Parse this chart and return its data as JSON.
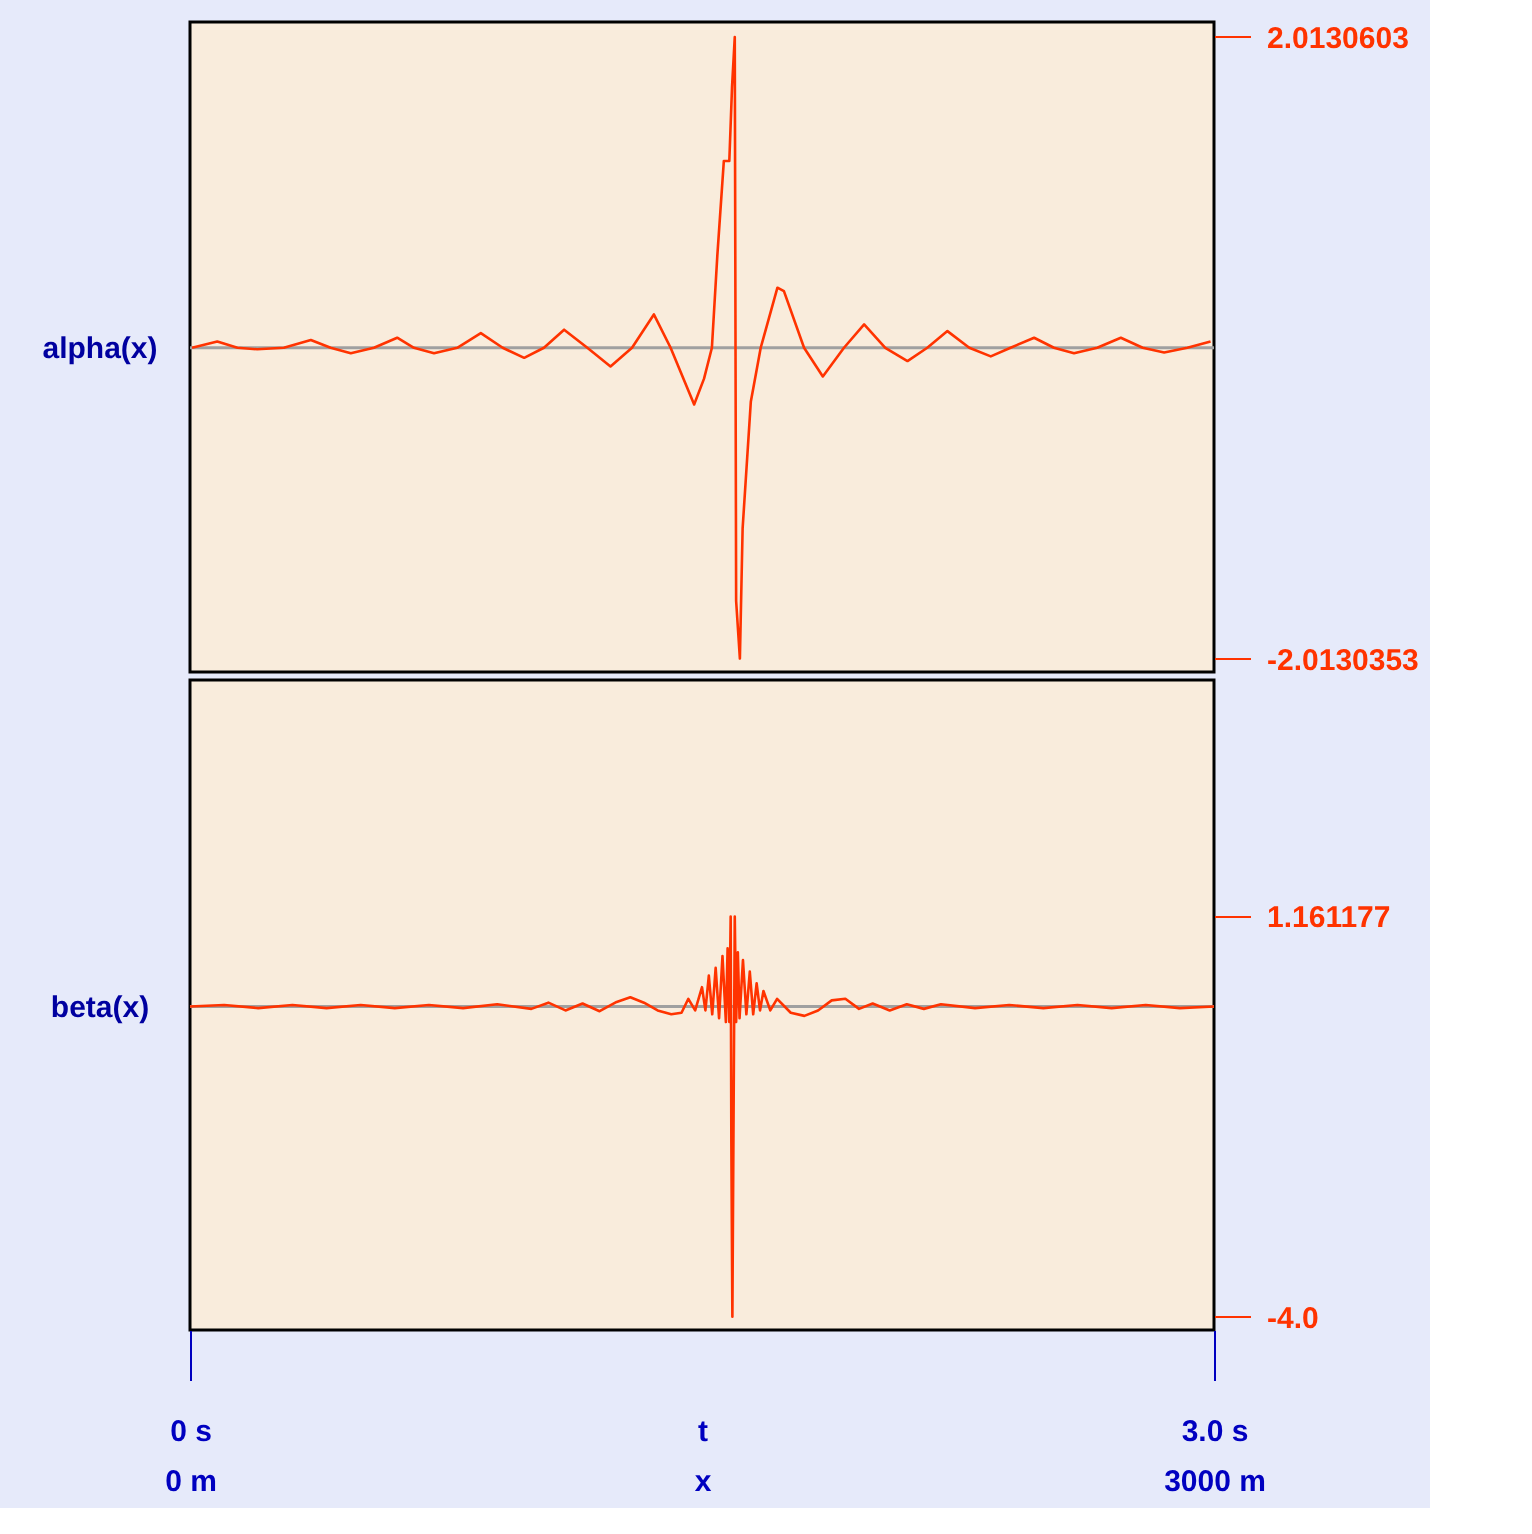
{
  "chart_data": [
    {
      "type": "line",
      "ylabel": "alpha(x)",
      "xlim": [
        0,
        3
      ],
      "ylim": [
        -2.1,
        2.11
      ],
      "yticks": [
        2.0130603,
        -2.0130353
      ],
      "tick_labels": "y",
      "grid": false,
      "ref_lines": [
        {
          "axis": "y",
          "value": 0,
          "color": "#a0a0a0"
        }
      ],
      "series": [
        {
          "color": "#ff3300",
          "x": [
            0.006,
            0.08,
            0.139,
            0.197,
            0.275,
            0.354,
            0.412,
            0.471,
            0.539,
            0.607,
            0.656,
            0.715,
            0.783,
            0.852,
            0.916,
            0.979,
            1.037,
            1.096,
            1.164,
            1.232,
            1.295,
            1.359,
            1.408,
            1.477,
            1.506,
            1.529,
            1.545,
            1.564,
            1.58,
            1.588,
            1.596,
            1.6,
            1.611,
            1.619,
            1.643,
            1.672,
            1.721,
            1.74,
            1.799,
            1.854,
            1.916,
            1.975,
            2.037,
            2.102,
            2.16,
            2.219,
            2.283,
            2.346,
            2.404,
            2.473,
            2.531,
            2.59,
            2.658,
            2.727,
            2.791,
            2.854,
            2.922,
            2.99
          ],
          "values": [
            0,
            0.04,
            0,
            -0.01,
            0,
            0.05,
            0,
            -0.035,
            0,
            0.065,
            0,
            -0.035,
            0,
            0.095,
            0,
            -0.065,
            0,
            0.117,
            0,
            -0.121,
            0,
            0.216,
            0,
            -0.367,
            -0.2,
            0,
            0.6,
            1.21,
            1.21,
            1.69,
            2.013,
            -1.64,
            -2.013,
            -1.17,
            -0.35,
            0,
            0.389,
            0.367,
            0,
            -0.186,
            0,
            0.151,
            0,
            -0.086,
            0,
            0.108,
            0,
            -0.056,
            0,
            0.065,
            0,
            -0.035,
            0,
            0.065,
            0,
            -0.03,
            0,
            0.04
          ]
        }
      ]
    },
    {
      "type": "line",
      "ylabel": "beta(x)",
      "xlabel": "t",
      "xlim": [
        0,
        3
      ],
      "xticks": [
        {
          "value": 0,
          "label": "0 s"
        },
        {
          "value": 3,
          "label": "3.0 s"
        }
      ],
      "x2label": "x",
      "x2lim": [
        0,
        3000
      ],
      "x2ticks": [
        {
          "value": 0,
          "label": "0 m"
        },
        {
          "value": 3000,
          "label": "3000 m"
        }
      ],
      "ylim": [
        -4.17,
        4.21
      ],
      "yticks": [
        1.161177,
        {
          "value": -4,
          "label": "-4.0"
        }
      ],
      "grid": false,
      "ref_lines": [
        {
          "axis": "y",
          "value": 0,
          "color": "#a0a0a0"
        }
      ],
      "series": [
        {
          "color": "#ff3300",
          "x": [
            0,
            0.1,
            0.2,
            0.3,
            0.4,
            0.5,
            0.6,
            0.7,
            0.8,
            0.9,
            1.0,
            1.05,
            1.1,
            1.15,
            1.2,
            1.25,
            1.29,
            1.33,
            1.37,
            1.41,
            1.44,
            1.46,
            1.48,
            1.5,
            1.51,
            1.52,
            1.53,
            1.54,
            1.55,
            1.56,
            1.57,
            1.575,
            1.58,
            1.584,
            1.586,
            1.589,
            1.592,
            1.596,
            1.6,
            1.605,
            1.61,
            1.62,
            1.63,
            1.64,
            1.65,
            1.66,
            1.67,
            1.68,
            1.7,
            1.72,
            1.76,
            1.8,
            1.84,
            1.88,
            1.92,
            1.96,
            2.0,
            2.05,
            2.1,
            2.15,
            2.2,
            2.3,
            2.4,
            2.5,
            2.6,
            2.7,
            2.8,
            2.9,
            3.0
          ],
          "values": [
            0,
            0.02,
            -0.02,
            0.02,
            -0.02,
            0.02,
            -0.02,
            0.02,
            -0.02,
            0.03,
            -0.03,
            0.05,
            -0.05,
            0.04,
            -0.06,
            0.06,
            0.12,
            0.05,
            -0.05,
            -0.1,
            -0.08,
            0.1,
            -0.05,
            0.25,
            -0.05,
            0.4,
            -0.1,
            0.5,
            -0.15,
            0.65,
            -0.2,
            0.75,
            -0.2,
            1.161,
            -1.76,
            -4.0,
            -1.76,
            1.161,
            -0.2,
            0.7,
            -0.15,
            0.6,
            -0.1,
            0.45,
            -0.1,
            0.3,
            -0.05,
            0.2,
            -0.05,
            0.1,
            -0.08,
            -0.12,
            -0.05,
            0.08,
            0.1,
            -0.03,
            0.04,
            -0.05,
            0.03,
            -0.03,
            0.03,
            -0.02,
            0.02,
            -0.02,
            0.02,
            -0.02,
            0.02,
            -0.02,
            0
          ]
        }
      ]
    }
  ]
}
